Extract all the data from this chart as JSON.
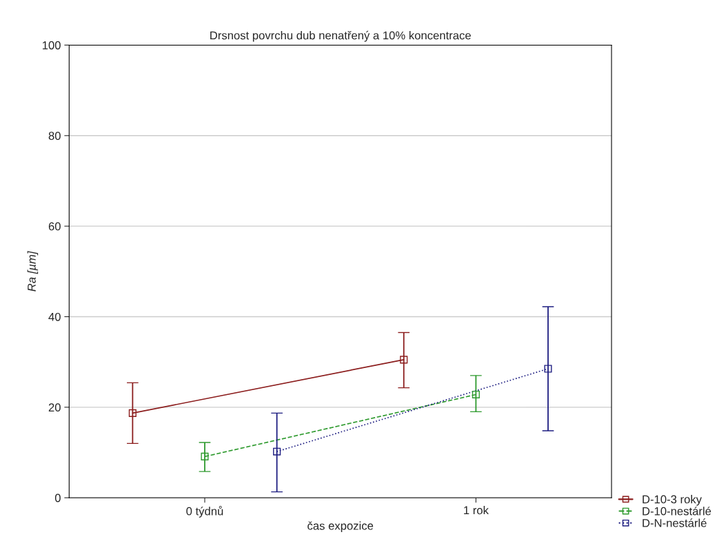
{
  "chart_data": {
    "type": "line",
    "title": "Drsnost povrchu dub nenatřený a 10% koncentrace",
    "xlabel": "čas expozice",
    "ylabel": "Ra [µm]",
    "categories": [
      "0 týdnů",
      "1 rok"
    ],
    "series": [
      {
        "name": "D-10-3 roky",
        "color": "#8b1c1c",
        "values": [
          18.7,
          30.5
        ],
        "errors": [
          [
            12.0,
            25.4
          ],
          [
            24.3,
            36.5
          ]
        ],
        "line_style": "solid"
      },
      {
        "name": "D-10-nestárlé",
        "color": "#2e9a2e",
        "values": [
          9.1,
          22.8
        ],
        "errors": [
          [
            5.8,
            12.2
          ],
          [
            19.0,
            27.0
          ]
        ],
        "line_style": "dashed"
      },
      {
        "name": "D-N-nestárlé",
        "color": "#1c1c80",
        "values": [
          10.2,
          28.5
        ],
        "errors": [
          [
            1.3,
            18.7
          ],
          [
            14.8,
            42.2
          ]
        ],
        "line_style": "dotted"
      }
    ],
    "ylim": [
      0,
      100
    ],
    "yticks": [
      0,
      20,
      40,
      60,
      80,
      100
    ],
    "grid": "y",
    "legend": "bottom right",
    "marker": "square"
  }
}
